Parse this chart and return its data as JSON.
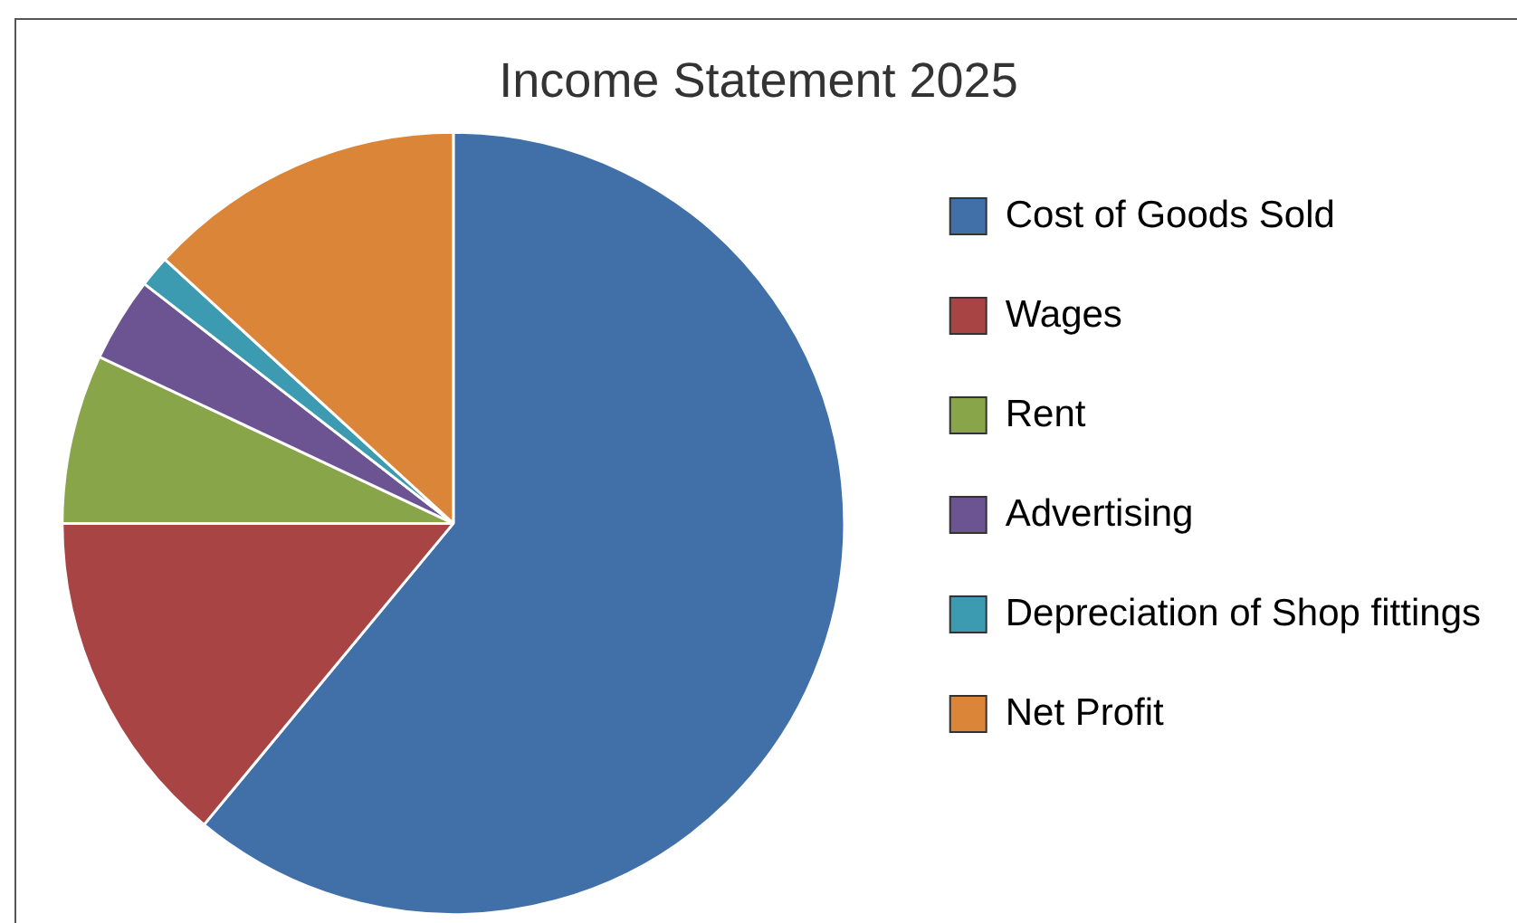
{
  "chart_data": {
    "type": "pie",
    "title": "Income Statement 2025",
    "categories": [
      "Cost of Goods Sold",
      "Wages",
      "Rent",
      "Advertising",
      "Depreciation of Shop fittings",
      "Net Profit"
    ],
    "values": [
      61,
      14,
      7,
      3.5,
      1.3,
      13.2
    ],
    "colors": [
      "#4170a8",
      "#a84544",
      "#88a54a",
      "#6c5391",
      "#3d9bb1",
      "#db8539"
    ],
    "legend": "right"
  }
}
